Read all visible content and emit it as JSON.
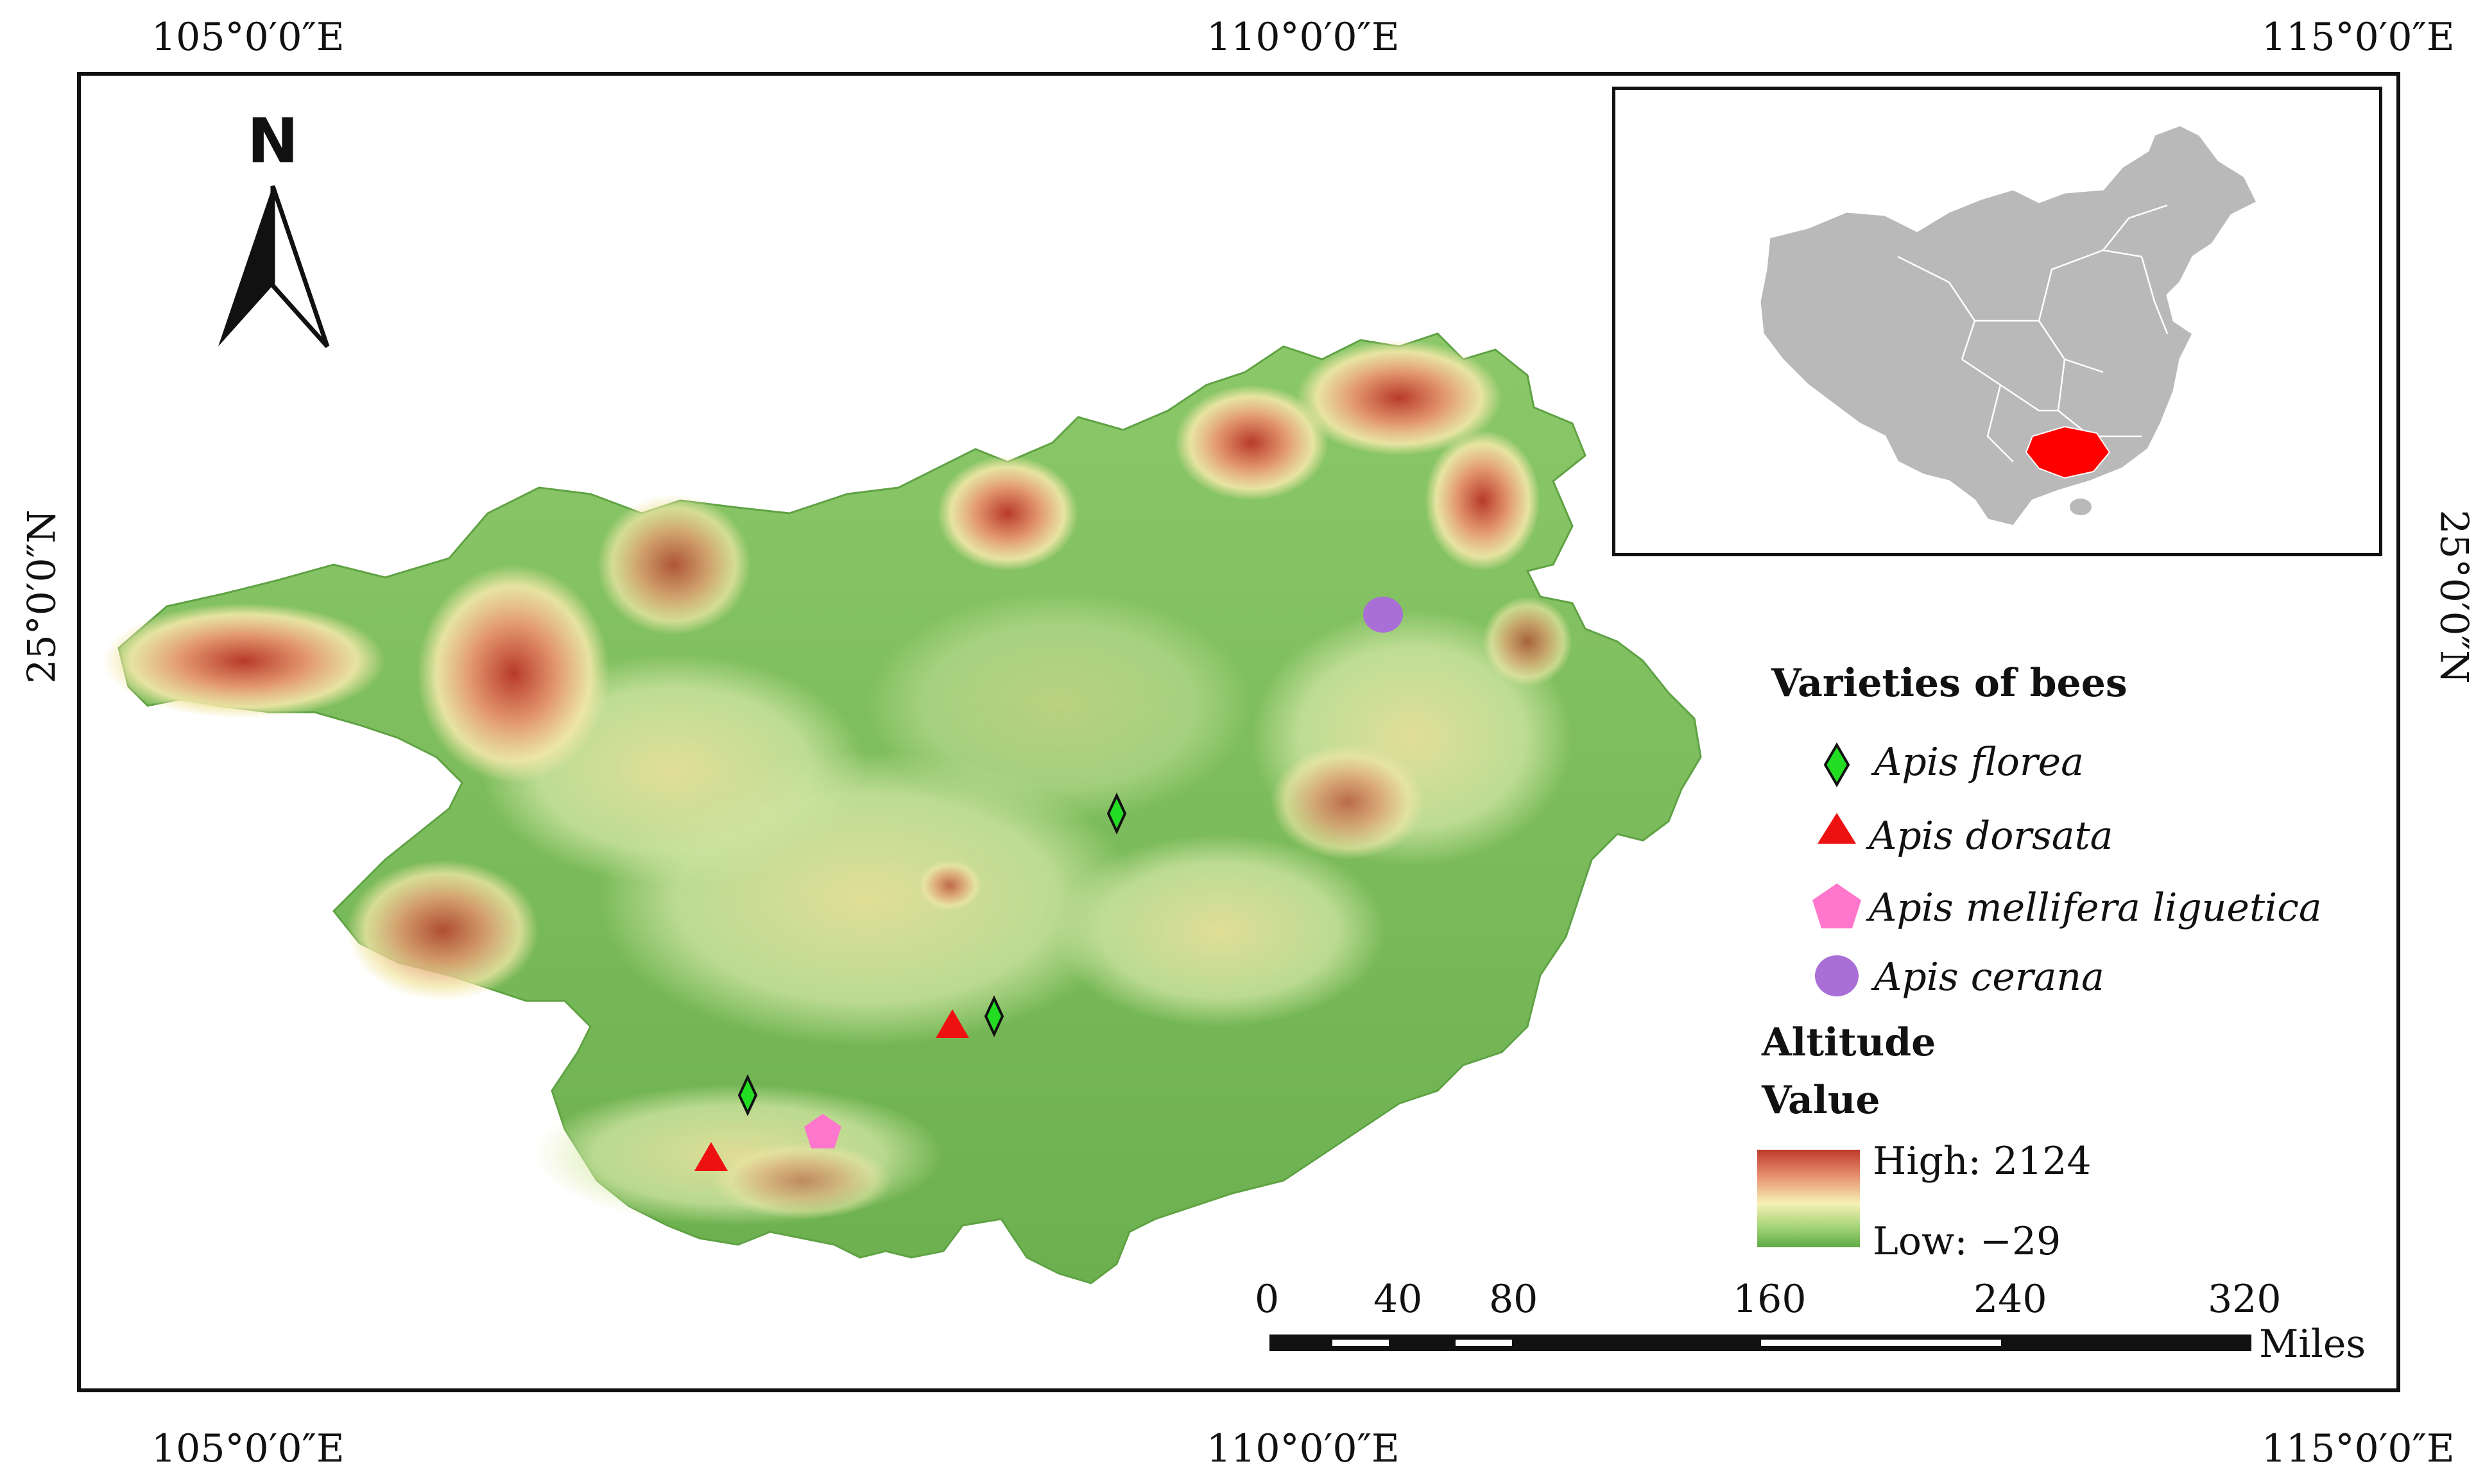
{
  "graticule": {
    "top": [
      "105°0′0″E",
      "110°0′0″E",
      "115°0′0″E"
    ],
    "bottom": [
      "105°0′0″E",
      "110°0′0″E",
      "115°0′0″E"
    ],
    "left": "25°0′0″N",
    "right": "25°0′0″N"
  },
  "north_arrow": {
    "label": "N"
  },
  "legend": {
    "title": "Varieties of bees",
    "items": [
      {
        "label": "Apis florea",
        "symbol": "green-diamond",
        "color": "#22dd22"
      },
      {
        "label": "Apis dorsata",
        "symbol": "red-triangle",
        "color": "#ee1111"
      },
      {
        "label": "Apis mellifera liguetica",
        "symbol": "pink-pentagon",
        "color": "#ff77cc"
      },
      {
        "label": "Apis cerana",
        "symbol": "purple-circle",
        "color": "#a96fd6"
      }
    ],
    "altitude_title_1": "Altitude",
    "altitude_title_2": "Value",
    "high": "High: 2124",
    "low": "Low: −29",
    "ramp_colors": [
      "#c0392b",
      "#e99b77",
      "#f6f0b4",
      "#a9d67c",
      "#5fab45"
    ]
  },
  "scale_bar": {
    "ticks": [
      "0",
      "40",
      "80",
      "160",
      "240",
      "320"
    ],
    "unit": "Miles"
  },
  "inset": {
    "highlight_color": "#ff0000",
    "base_color": "#b9b9b9"
  }
}
